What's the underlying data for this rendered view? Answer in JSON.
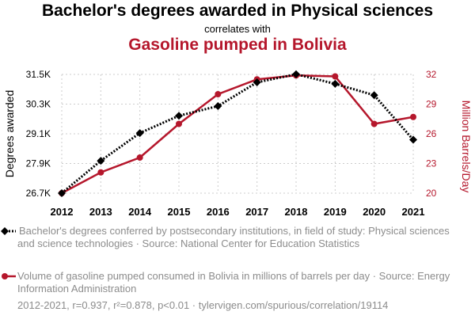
{
  "title": "Bachelor's degrees awarded in Physical sciences",
  "subtitle": "correlates with",
  "title2": "Gasoline pumped in Bolivia",
  "colors": {
    "series1": "#000000",
    "series2": "#b5172c",
    "text": "#8c8c8c"
  },
  "chart_data": {
    "type": "line",
    "x": [
      2012,
      2013,
      2014,
      2015,
      2016,
      2017,
      2018,
      2019,
      2020,
      2021
    ],
    "xlabel": "",
    "ylabel": "Degrees awarded",
    "ylabel_right": "Million Barrels/Day",
    "ylim": [
      26700,
      31500
    ],
    "ylim_right": [
      20,
      32
    ],
    "yticks": [
      "26.7K",
      "27.9K",
      "29.1K",
      "30.3K",
      "31.5K"
    ],
    "yticks_right": [
      "20",
      "23",
      "26",
      "29",
      "32"
    ],
    "grid": true,
    "series": [
      {
        "name": "Bachelor's degrees conferred by postsecondary institutions, in field of study: Physical sciences and science technologies · Source: National Center for Education Statistics",
        "axis": "left",
        "style": "dotted",
        "marker": "diamond",
        "values": [
          26700,
          28010,
          29130,
          29830,
          30220,
          31180,
          31510,
          31120,
          30660,
          28860
        ]
      },
      {
        "name": "Volume of gasoline pumped consumed in Bolivia in millions of barrels per day · Source: Energy Information Administration",
        "axis": "right",
        "style": "solid",
        "marker": "circle",
        "values": [
          20.0,
          22.1,
          23.6,
          27.0,
          30.0,
          31.5,
          31.9,
          31.8,
          27.0,
          27.7
        ]
      }
    ]
  },
  "legend": [
    {
      "text": "Bachelor's degrees conferred by postsecondary institutions, in field of study: Physical sciences and science technologies · Source: National Center for Education Statistics"
    },
    {
      "text": "Volume of gasoline pumped consumed in Bolivia in millions of barrels per day · Source: Energy Information Administration"
    }
  ],
  "footer": "2012-2021, r=0.937, r²=0.878, p<0.01 · tylervigen.com/spurious/correlation/19114"
}
